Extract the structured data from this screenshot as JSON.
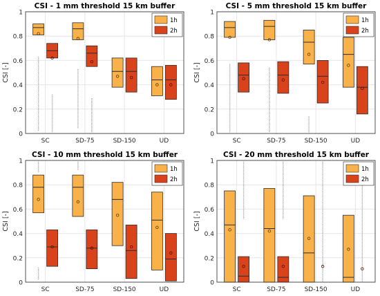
{
  "chart_data": [
    {
      "type": "box",
      "title": "CSI - 1 mm threshold 15 km buffer",
      "xlabel": "",
      "ylabel": "CSI [-]",
      "ylim": [
        0,
        1
      ],
      "yticks": [
        0,
        0.2,
        0.4,
        0.6,
        0.8,
        1
      ],
      "yticklabels": [
        "0",
        "0.2",
        "0.4",
        "0.6",
        "0.8",
        "1"
      ],
      "grid": true,
      "legend": "top-right",
      "categories": [
        "SC",
        "SD-75",
        "SD-150",
        "UD"
      ],
      "series": [
        {
          "name": "1h",
          "color": "#f9b24a",
          "q1": [
            0.81,
            0.77,
            0.38,
            0.31
          ],
          "median": [
            0.87,
            0.86,
            0.51,
            0.44
          ],
          "q3": [
            0.9,
            0.91,
            0.62,
            0.55
          ],
          "mean": [
            0.82,
            0.78,
            0.47,
            0.4
          ],
          "outliers": [
            [
              0.02,
              0.63
            ],
            [
              0.04,
              0.53
            ],
            [],
            []
          ]
        },
        {
          "name": "2h",
          "color": "#d9431c",
          "q1": [
            0.62,
            0.55,
            0.34,
            0.28
          ],
          "median": [
            0.68,
            0.66,
            0.51,
            0.44
          ],
          "q3": [
            0.74,
            0.72,
            0.62,
            0.56
          ],
          "mean": [
            0.62,
            0.59,
            0.46,
            0.4
          ],
          "outliers": [
            [
              0.01,
              0.32
            ],
            [
              0.01,
              0.29
            ],
            [],
            []
          ]
        }
      ]
    },
    {
      "type": "box",
      "title": "CSI - 5 mm threshold 15 km buffer",
      "xlabel": "",
      "ylabel": "CSI [-]",
      "ylim": [
        0,
        1
      ],
      "yticks": [
        0,
        0.2,
        0.4,
        0.6,
        0.8,
        1
      ],
      "yticklabels": [
        "0",
        "0.2",
        "0.4",
        "0.6",
        "0.8",
        "1"
      ],
      "grid": true,
      "legend": "top-right",
      "categories": [
        "SC",
        "SD-75",
        "SD-150",
        "UD"
      ],
      "series": [
        {
          "name": "1h",
          "color": "#f9b24a",
          "q1": [
            0.79,
            0.77,
            0.57,
            0.38
          ],
          "median": [
            0.87,
            0.88,
            0.75,
            0.65
          ],
          "q3": [
            0.92,
            0.93,
            0.85,
            0.79
          ],
          "mean": [
            0.79,
            0.77,
            0.65,
            0.56
          ],
          "outliers": [
            [
              0.01,
              0.57
            ],
            [
              0.01,
              0.54
            ],
            [
              0.01,
              0.14
            ],
            []
          ]
        },
        {
          "name": "2h",
          "color": "#d9431c",
          "q1": [
            0.34,
            0.33,
            0.25,
            0.16
          ],
          "median": [
            0.48,
            0.48,
            0.47,
            0.38
          ],
          "q3": [
            0.58,
            0.59,
            0.6,
            0.55
          ],
          "mean": [
            0.45,
            0.44,
            0.42,
            0.37
          ],
          "outliers": [
            [],
            [],
            [],
            []
          ]
        }
      ]
    },
    {
      "type": "box",
      "title": "CSI - 10 mm threshold 15 km buffer",
      "xlabel": "",
      "ylabel": "CSI [-]",
      "ylim": [
        0,
        1
      ],
      "yticks": [
        0,
        0.2,
        0.4,
        0.6,
        0.8,
        1
      ],
      "yticklabels": [
        "0",
        "0.2",
        "0.4",
        "0.6",
        "0.8",
        "1"
      ],
      "grid": true,
      "legend": "top-right",
      "categories": [
        "SC",
        "SD-75",
        "SD-150",
        "UD"
      ],
      "series": [
        {
          "name": "1h",
          "color": "#f9b24a",
          "q1": [
            0.57,
            0.54,
            0.3,
            0.1
          ],
          "median": [
            0.78,
            0.78,
            0.68,
            0.51
          ],
          "q3": [
            0.88,
            0.88,
            0.82,
            0.74
          ],
          "mean": [
            0.68,
            0.66,
            0.55,
            0.45
          ],
          "outliers": [
            [
              0.02,
              0.12,
              0.9,
              0.99
            ],
            [
              0.92,
              0.99
            ],
            [],
            []
          ]
        },
        {
          "name": "2h",
          "color": "#d9431c",
          "q1": [
            0.13,
            0.11,
            0.03,
            0.01
          ],
          "median": [
            0.29,
            0.28,
            0.26,
            0.19
          ],
          "q3": [
            0.43,
            0.43,
            0.47,
            0.4
          ],
          "mean": [
            0.29,
            0.28,
            0.29,
            0.24
          ],
          "outliers": [
            [],
            [],
            [],
            []
          ]
        }
      ]
    },
    {
      "type": "box",
      "title": "CSI - 20 mm threshold 15 km buffer",
      "xlabel": "",
      "ylabel": "CSI [-]",
      "ylim": [
        0,
        1
      ],
      "yticks": [
        0,
        0.2,
        0.4,
        0.6,
        0.8,
        1
      ],
      "yticklabels": [
        "0",
        "0.2",
        "0.4",
        "0.6",
        "0.8",
        "1"
      ],
      "grid": true,
      "legend": "top-right",
      "categories": [
        "SC",
        "SD-75",
        "SD-150",
        "UD"
      ],
      "series": [
        {
          "name": "1h",
          "color": "#f9b24a",
          "q1": [
            0.0,
            0.0,
            0.0,
            0.0
          ],
          "median": [
            0.47,
            0.44,
            0.24,
            0.04
          ],
          "q3": [
            0.75,
            0.77,
            0.71,
            0.55
          ],
          "mean": [
            0.43,
            0.42,
            0.36,
            0.27
          ],
          "outliers": [
            [],
            [],
            [],
            []
          ]
        },
        {
          "name": "2h",
          "color": "#d9431c",
          "q1": [
            0.0,
            0.0,
            null,
            null
          ],
          "median": [
            0.05,
            0.04,
            null,
            null
          ],
          "q3": [
            0.21,
            0.21,
            null,
            null
          ],
          "mean": [
            0.13,
            0.13,
            0.13,
            0.11
          ],
          "outliers": [
            [
              0.52,
              0.99
            ],
            [
              0.52,
              0.99
            ],
            [
              0.0,
              0.99
            ],
            [
              0.0,
              0.99
            ]
          ]
        }
      ]
    }
  ]
}
